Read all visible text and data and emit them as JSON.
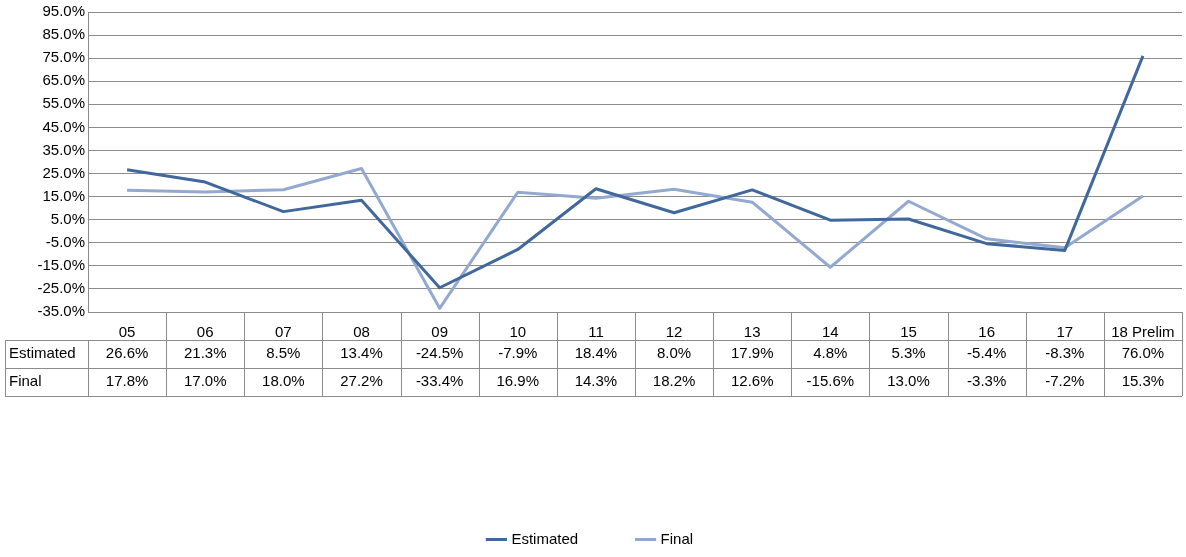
{
  "chart_data": {
    "type": "line",
    "categories": [
      "05",
      "06",
      "07",
      "08",
      "09",
      "10",
      "11",
      "12",
      "13",
      "14",
      "15",
      "16",
      "17",
      "18 Prelim"
    ],
    "series": [
      {
        "name": "Estimated",
        "color": "#41689c",
        "values": [
          26.6,
          21.3,
          8.5,
          13.4,
          -24.5,
          -7.9,
          18.4,
          8.0,
          17.9,
          4.8,
          5.3,
          -5.4,
          -8.3,
          76.0
        ],
        "value_labels": [
          "26.6%",
          "21.3%",
          "8.5%",
          "13.4%",
          "-24.5%",
          "-7.9%",
          "18.4%",
          "8.0%",
          "17.9%",
          "4.8%",
          "5.3%",
          "-5.4%",
          "-8.3%",
          "76.0%"
        ]
      },
      {
        "name": "Final",
        "color": "#93a9cf",
        "values": [
          17.8,
          17.0,
          18.0,
          27.2,
          -33.4,
          16.9,
          14.3,
          18.2,
          12.6,
          -15.6,
          13.0,
          -3.3,
          -7.2,
          15.3
        ],
        "value_labels": [
          "17.8%",
          "17.0%",
          "18.0%",
          "27.2%",
          "-33.4%",
          "16.9%",
          "14.3%",
          "18.2%",
          "12.6%",
          "-15.6%",
          "13.0%",
          "-3.3%",
          "-7.2%",
          "15.3%"
        ]
      }
    ],
    "ylim": [
      -35,
      95
    ],
    "yticks": [
      {
        "value": -35,
        "label": "-35.0%"
      },
      {
        "value": -25,
        "label": "-25.0%"
      },
      {
        "value": -15,
        "label": "-15.0%"
      },
      {
        "value": -5,
        "label": "-5.0%"
      },
      {
        "value": 5,
        "label": "5.0%"
      },
      {
        "value": 15,
        "label": "15.0%"
      },
      {
        "value": 25,
        "label": "25.0%"
      },
      {
        "value": 35,
        "label": "35.0%"
      },
      {
        "value": 45,
        "label": "45.0%"
      },
      {
        "value": 55,
        "label": "55.0%"
      },
      {
        "value": 65,
        "label": "65.0%"
      },
      {
        "value": 75,
        "label": "75.0%"
      },
      {
        "value": 85,
        "label": "85.0%"
      },
      {
        "value": 95,
        "label": "95.0%"
      }
    ],
    "grid": "y",
    "legend": "bottom",
    "marker": "none",
    "line_style": "solid"
  }
}
